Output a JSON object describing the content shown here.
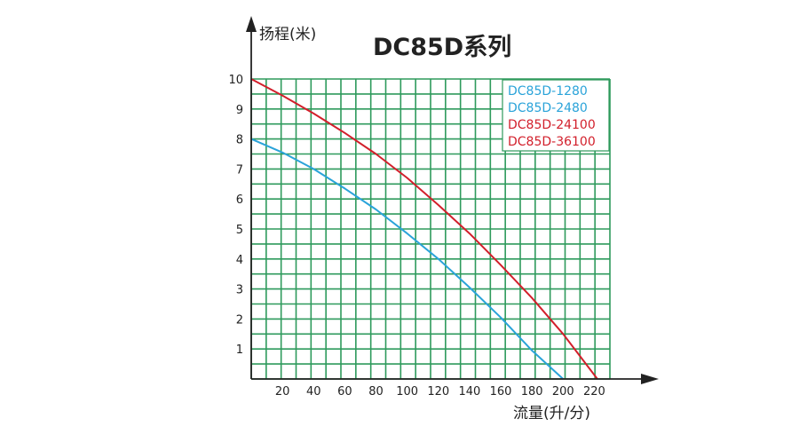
{
  "chart_data": {
    "type": "line",
    "title": "DC85D系列",
    "ylabel": "扬程(米)",
    "xlabel": "流量(升/分)",
    "xlim": [
      0,
      230
    ],
    "ylim": [
      0,
      10
    ],
    "grid": true,
    "legend_position": "top-right",
    "x_ticks": [
      "20",
      "40",
      "60",
      "80",
      "100",
      "120",
      "140",
      "160",
      "180",
      "200",
      "220"
    ],
    "y_ticks": [
      "1",
      "2",
      "3",
      "4",
      "5",
      "6",
      "7",
      "8",
      "9",
      "10"
    ],
    "legend": [
      {
        "name": "DC85D-1280",
        "color": "#2aa3d9"
      },
      {
        "name": "DC85D-2480",
        "color": "#2aa3d9"
      },
      {
        "name": "DC85D-24100",
        "color": "#d21f2b"
      },
      {
        "name": "DC85D-36100",
        "color": "#d21f2b"
      }
    ],
    "series": [
      {
        "color": "#2aa3d9",
        "x": [
          0,
          20,
          40,
          60,
          80,
          100,
          120,
          140,
          160,
          180,
          200
        ],
        "y": [
          8.0,
          7.55,
          7.0,
          6.35,
          5.65,
          4.85,
          4.0,
          3.05,
          2.05,
          0.95,
          0.0
        ]
      },
      {
        "color": "#d21f2b",
        "x": [
          0,
          20,
          40,
          60,
          80,
          100,
          120,
          140,
          160,
          180,
          200,
          222
        ],
        "y": [
          10.0,
          9.45,
          8.85,
          8.2,
          7.5,
          6.7,
          5.8,
          4.85,
          3.8,
          2.7,
          1.5,
          0.0
        ]
      }
    ]
  },
  "colors": {
    "grid": "#2e9a5c",
    "axis": "#222222",
    "legend_bg": "#ffffff"
  }
}
